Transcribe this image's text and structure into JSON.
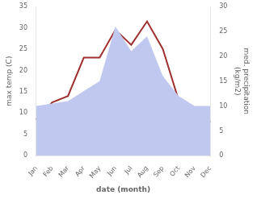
{
  "chart_data": {
    "type": "line",
    "xlabel": "date (month)",
    "ylabel": "max temp (C)",
    "y2label": "med. precipitation\n(kg/m2)",
    "categories": [
      "Jan",
      "Feb",
      "Mar",
      "Apr",
      "May",
      "Jun",
      "Jul",
      "Aug",
      "Sep",
      "Oct",
      "Nov",
      "Dec"
    ],
    "series": [
      {
        "type": "area",
        "color": "#c0c8f0",
        "axis": "y2",
        "values": [
          10.0,
          10.5,
          11.0,
          13.0,
          15.0,
          26.0,
          21.0,
          24.0,
          16.0,
          12.0,
          10.0,
          10.0
        ]
      },
      {
        "type": "line",
        "color": "#a03030",
        "values": [
          8.5,
          12.5,
          14.0,
          23.0,
          23.0,
          29.5,
          26.0,
          31.5,
          25.0,
          13.0,
          8.0,
          8.0
        ]
      }
    ],
    "ylim": [
      0,
      35
    ],
    "yticks": [
      0,
      5,
      10,
      15,
      20,
      25,
      30,
      35
    ],
    "y2lim": [
      0,
      30
    ],
    "y2ticks": [
      0,
      5,
      10,
      15,
      20,
      25,
      30
    ],
    "grid": false
  }
}
